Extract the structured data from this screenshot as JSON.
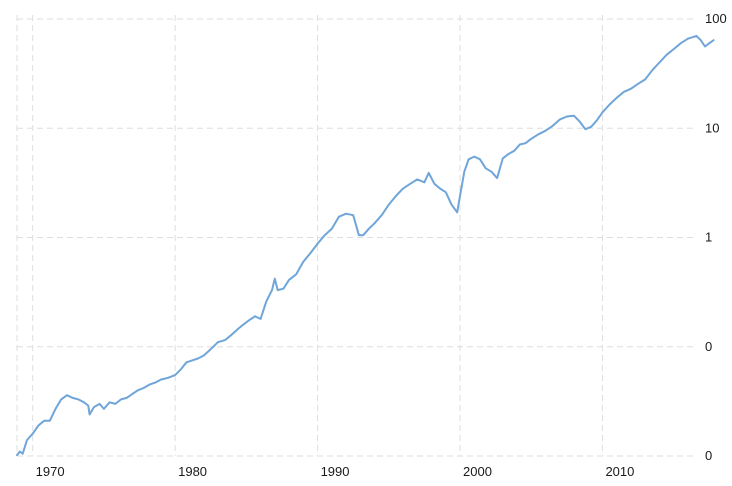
{
  "chart_data": {
    "type": "line",
    "title": "",
    "xlabel": "",
    "ylabel": "",
    "y_scale": "log",
    "x_range": [
      1968.9,
      2017.9
    ],
    "y_range": [
      0.01,
      100
    ],
    "grid": true,
    "legend": "none",
    "colors": {
      "line": "#6fa5d9",
      "grid": "#dedede",
      "text": "#1a1a1a",
      "background": "#ffffff"
    },
    "x_ticks": [
      {
        "value": 1970,
        "label": "1970"
      },
      {
        "value": 1980,
        "label": "1980"
      },
      {
        "value": 1990,
        "label": "1990"
      },
      {
        "value": 2000,
        "label": "2000"
      },
      {
        "value": 2010,
        "label": "2010"
      }
    ],
    "y_ticks": [
      {
        "value": 0.01,
        "label": "0"
      },
      {
        "value": 0.1,
        "label": "0"
      },
      {
        "value": 1,
        "label": "1"
      },
      {
        "value": 10,
        "label": "10"
      },
      {
        "value": 100,
        "label": "100"
      }
    ],
    "series": [
      {
        "x": [
          1968.9,
          1969.1,
          1969.3,
          1969.6,
          1970.0,
          1970.4,
          1970.8,
          1971.2,
          1971.6,
          1972.0,
          1972.4,
          1972.8,
          1973.2,
          1973.6,
          1973.9,
          1974.0,
          1974.3,
          1974.7,
          1975.0,
          1975.4,
          1975.8,
          1976.2,
          1976.6,
          1977.0,
          1977.4,
          1977.8,
          1978.2,
          1978.6,
          1979.0,
          1979.5,
          1980.0,
          1980.4,
          1980.8,
          1981.2,
          1981.6,
          1982.0,
          1982.5,
          1983.0,
          1983.5,
          1984.0,
          1984.4,
          1984.8,
          1985.2,
          1985.6,
          1986.0,
          1986.4,
          1986.8,
          1987.0,
          1987.2,
          1987.6,
          1988.0,
          1988.5,
          1989.0,
          1989.5,
          1990.0,
          1990.5,
          1991.0,
          1991.5,
          1992.0,
          1992.5,
          1992.9,
          1993.2,
          1993.6,
          1994.0,
          1994.5,
          1995.0,
          1995.5,
          1996.0,
          1996.5,
          1997.0,
          1997.5,
          1997.8,
          1998.2,
          1998.6,
          1999.0,
          1999.4,
          1999.8,
          2000.0,
          2000.3,
          2000.6,
          2001.0,
          2001.4,
          2001.8,
          2002.2,
          2002.6,
          2003.0,
          2003.4,
          2003.8,
          2004.2,
          2004.6,
          2005.0,
          2005.5,
          2006.0,
          2006.5,
          2007.0,
          2007.5,
          2008.0,
          2008.4,
          2008.8,
          2009.2,
          2009.6,
          2010.0,
          2010.5,
          2011.0,
          2011.5,
          2012.0,
          2012.5,
          2013.0,
          2013.5,
          2014.0,
          2014.5,
          2015.0,
          2015.5,
          2016.0,
          2016.3,
          2016.6,
          2016.9,
          2017.2,
          2017.5,
          2017.8
        ],
        "y": [
          0.0102,
          0.011,
          0.0105,
          0.014,
          0.016,
          0.019,
          0.021,
          0.021,
          0.027,
          0.033,
          0.036,
          0.034,
          0.033,
          0.031,
          0.029,
          0.024,
          0.028,
          0.03,
          0.027,
          0.031,
          0.03,
          0.033,
          0.034,
          0.037,
          0.04,
          0.042,
          0.045,
          0.047,
          0.05,
          0.052,
          0.055,
          0.062,
          0.072,
          0.075,
          0.078,
          0.083,
          0.095,
          0.11,
          0.115,
          0.13,
          0.145,
          0.16,
          0.175,
          0.19,
          0.18,
          0.26,
          0.33,
          0.42,
          0.33,
          0.34,
          0.41,
          0.46,
          0.6,
          0.72,
          0.88,
          1.05,
          1.2,
          1.55,
          1.65,
          1.6,
          1.05,
          1.05,
          1.2,
          1.35,
          1.6,
          2.0,
          2.4,
          2.8,
          3.1,
          3.4,
          3.2,
          3.9,
          3.1,
          2.8,
          2.6,
          2.0,
          1.7,
          2.4,
          4.0,
          5.2,
          5.5,
          5.2,
          4.3,
          4.0,
          3.5,
          5.3,
          5.8,
          6.2,
          7.1,
          7.3,
          8.0,
          8.8,
          9.5,
          10.5,
          12.0,
          12.8,
          13.0,
          11.5,
          9.8,
          10.3,
          11.8,
          14.0,
          16.5,
          19.0,
          21.5,
          23.0,
          25.5,
          28.0,
          34.0,
          40.0,
          47.0,
          53.0,
          60.0,
          66.0,
          68.0,
          70.0,
          64.0,
          56.0,
          60.0,
          64.0
        ]
      }
    ]
  }
}
